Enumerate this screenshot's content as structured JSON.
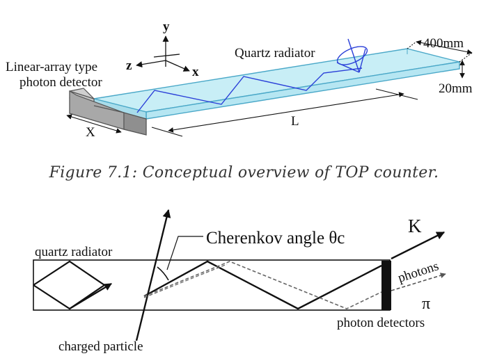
{
  "top_diagram": {
    "axis_y": "y",
    "axis_z": "z",
    "axis_x": "x",
    "detector_label_line1": "Linear-array type",
    "detector_label_line2": "photon detector",
    "radiator_label": "Quartz radiator",
    "width_label": "400mm",
    "thickness_label": "20mm",
    "length_label": "L",
    "detector_width_label": "X"
  },
  "caption": "Figure 7.1: Conceptual overview of TOP counter.",
  "bottom_diagram": {
    "cherenkov_label": "Cherenkov angle θc",
    "kaon_label": "K",
    "photons_label": "photons",
    "pion_label": "π",
    "radiator_label": "quartz radiator",
    "detectors_label": "photon detectors",
    "particle_label": "charged particle"
  },
  "colors": {
    "quartz_fill": "#c8eef6",
    "quartz_edge": "#4aa8c8",
    "photon_path": "#2a3fd8",
    "detector_box": "#a8a8a8"
  }
}
